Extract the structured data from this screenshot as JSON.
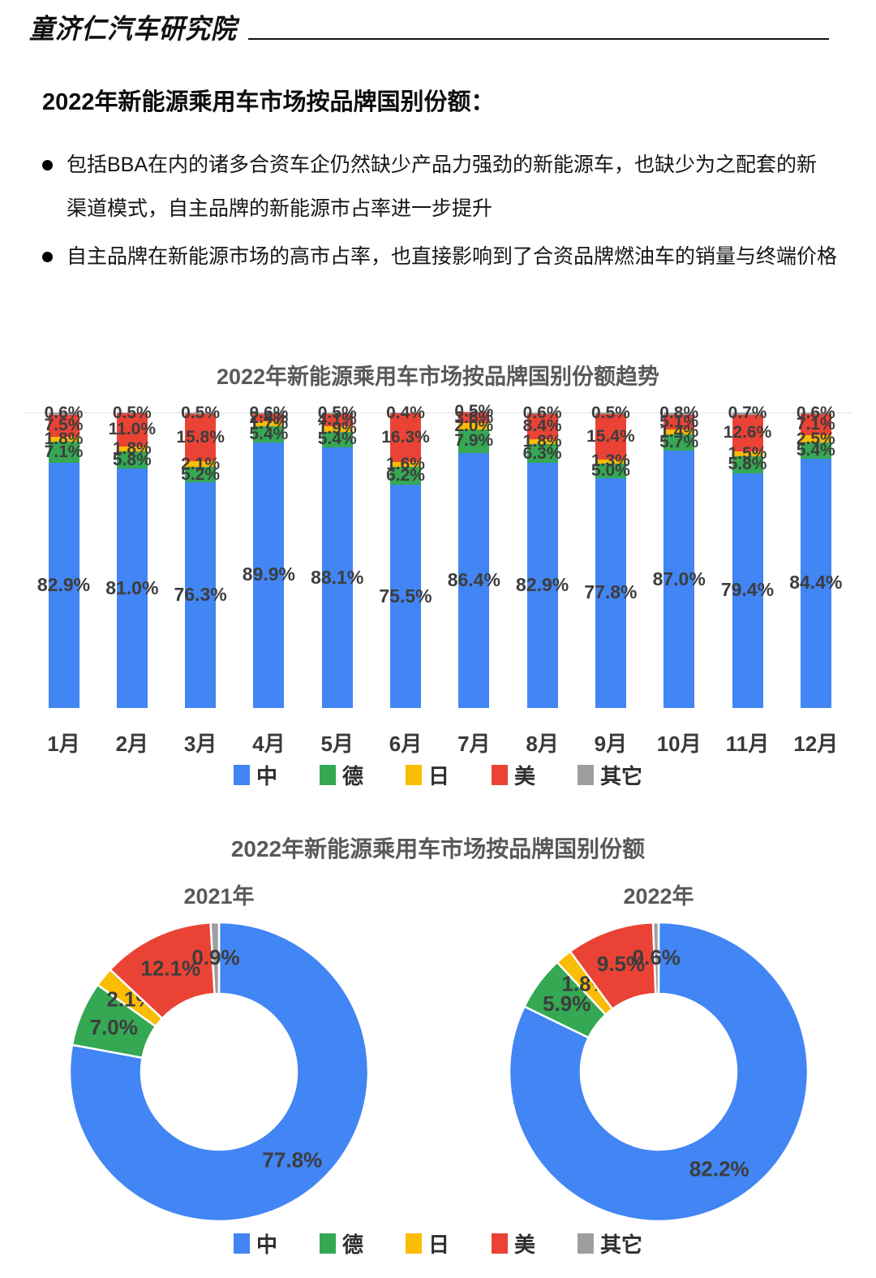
{
  "header": {
    "brand": "童济仁汽车研究院"
  },
  "intro": {
    "title": "2022年新能源乘用车市场按品牌国别份额：",
    "bullets": [
      "包括BBA在内的诸多合资车企仍然缺少产品力强劲的新能源车，也缺少为之配套的新渠道模式，自主品牌的新能源市占率进一步提升",
      "自主品牌在新能源市场的高市占率，也直接影响到了合资品牌燃油车的销量与终端价格"
    ]
  },
  "colors": {
    "china_blue": "#4285f4",
    "germany_green": "#34a853",
    "japan_yellow": "#fbbc04",
    "usa_red": "#ea4335",
    "other_gray": "#9e9e9e",
    "gridline": "#e3e3e3",
    "chart_title_gray": "#595959",
    "label_gray": "#3d3d3d"
  },
  "chart_data": [
    {
      "type": "bar",
      "stacked": true,
      "unit": "%",
      "title": "2022年新能源乘用车市场按品牌国别份额趋势",
      "categories": [
        "1月",
        "2月",
        "3月",
        "4月",
        "5月",
        "6月",
        "7月",
        "8月",
        "9月",
        "10月",
        "11月",
        "12月"
      ],
      "series": [
        {
          "name": "中",
          "color": "#4285f4",
          "values": [
            82.9,
            81.0,
            76.3,
            89.9,
            88.1,
            75.5,
            86.4,
            82.9,
            77.8,
            87.0,
            79.4,
            84.4
          ]
        },
        {
          "name": "德",
          "color": "#34a853",
          "values": [
            7.1,
            5.8,
            5.2,
            5.4,
            5.4,
            6.2,
            7.9,
            6.3,
            5.0,
            5.7,
            5.8,
            5.4
          ]
        },
        {
          "name": "日",
          "color": "#fbbc04",
          "values": [
            1.8,
            1.8,
            2.1,
            1.7,
            1.9,
            1.6,
            2.0,
            1.8,
            1.3,
            1.4,
            1.5,
            2.5
          ]
        },
        {
          "name": "美",
          "color": "#ea4335",
          "values": [
            7.5,
            11.0,
            15.8,
            2.4,
            4.1,
            16.3,
            3.6,
            8.4,
            15.4,
            5.1,
            12.6,
            7.1
          ]
        },
        {
          "name": "其它",
          "color": "#9e9e9e",
          "values": [
            0.6,
            0.5,
            0.5,
            0.6,
            0.5,
            0.4,
            0.5,
            0.6,
            0.5,
            0.8,
            0.7,
            0.6
          ]
        }
      ],
      "legend": [
        "中",
        "德",
        "日",
        "美",
        "其它"
      ],
      "legend_position": "bottom",
      "ylim": [
        0,
        100
      ],
      "grid": "top-line-only"
    },
    {
      "type": "pie",
      "subtype": "donut",
      "unit": "%",
      "title": "2022年新能源乘用车市场按品牌国别份额",
      "slices": [
        "中",
        "德",
        "日",
        "美",
        "其它"
      ],
      "slice_colors": [
        "#4285f4",
        "#34a853",
        "#fbbc04",
        "#ea4335",
        "#9e9e9e"
      ],
      "pies": [
        {
          "label": "2021年",
          "values": [
            77.8,
            7.0,
            2.1,
            12.1,
            0.9
          ]
        },
        {
          "label": "2022年",
          "values": [
            82.2,
            5.9,
            1.8,
            9.5,
            0.6
          ]
        }
      ],
      "legend": [
        "中",
        "德",
        "日",
        "美",
        "其它"
      ],
      "legend_position": "bottom"
    }
  ]
}
